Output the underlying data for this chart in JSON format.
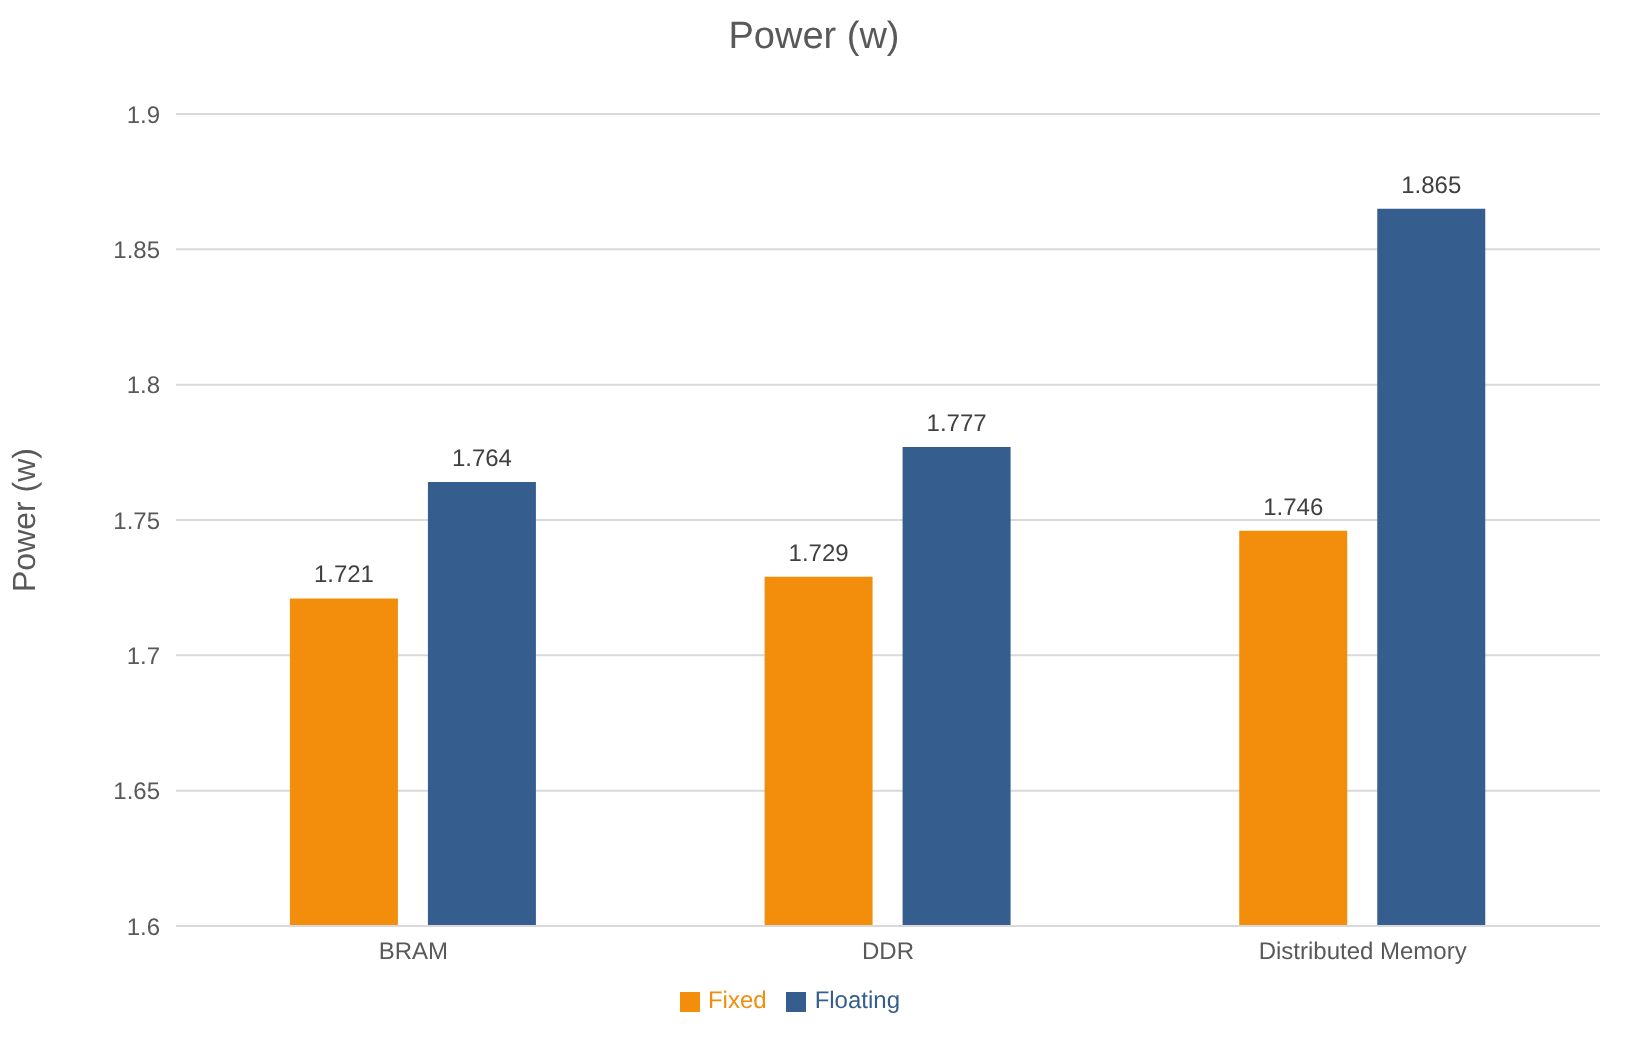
{
  "chart_data": {
    "type": "bar",
    "title": "Power (w)",
    "ylabel": "Power (w)",
    "categories": [
      "BRAM",
      "DDR",
      "Distributed Memory"
    ],
    "series": [
      {
        "name": "Fixed",
        "color": "#f28e0c",
        "values": [
          1.721,
          1.729,
          1.746
        ]
      },
      {
        "name": "Floating",
        "color": "#355e8e",
        "values": [
          1.764,
          1.777,
          1.865
        ]
      }
    ],
    "ylim": [
      1.6,
      1.9
    ],
    "yticks": [
      1.6,
      1.65,
      1.7,
      1.75,
      1.8,
      1.85,
      1.9
    ],
    "grid": "y",
    "legend": "bottom",
    "data_labels": true
  }
}
